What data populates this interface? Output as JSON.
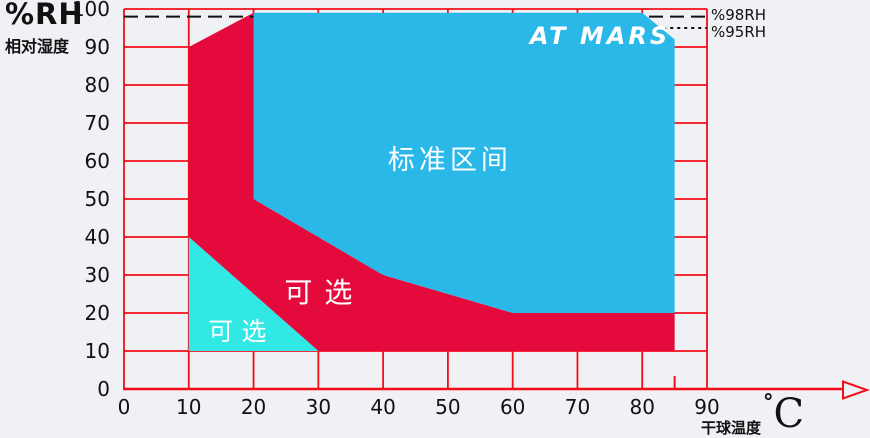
{
  "axes": {
    "y_unit": "%RH",
    "y_title": "相对湿度",
    "x_title": "干球温度",
    "x_unit_degree": "°",
    "x_unit_letter": "C"
  },
  "logo": {
    "text": "AT MARS"
  },
  "colors": {
    "background": "#eff1f5",
    "grid": "#f20d19",
    "reference_line": "#111111",
    "tick_text": "#111111",
    "region_label_text": "#ffffff"
  },
  "chart_data": {
    "type": "area",
    "title": "",
    "xlabel": "干球温度 (°C)",
    "ylabel": "相对湿度 (%RH)",
    "xlim": [
      0,
      90
    ],
    "ylim": [
      0,
      100
    ],
    "x_ticks": [
      0,
      10,
      20,
      30,
      40,
      50,
      60,
      70,
      80,
      90
    ],
    "x_minor_ticks": [
      85
    ],
    "y_ticks": [
      0,
      10,
      20,
      30,
      40,
      50,
      60,
      70,
      80,
      90,
      100
    ],
    "grid": true,
    "legend": "none",
    "reference_lines": [
      {
        "y": 98,
        "label": "%98RH",
        "style": "dashed",
        "x_start": 0,
        "x_end": 90
      },
      {
        "y": 95,
        "label": "%95RH",
        "style": "dotted",
        "x_start": 80,
        "x_end": 90
      }
    ],
    "regions": [
      {
        "name": "optional-red",
        "label": "可选",
        "color": "#e50a3c",
        "z": 1,
        "points": [
          [
            10,
            90
          ],
          [
            20,
            99
          ],
          [
            20,
            50
          ],
          [
            40,
            30
          ],
          [
            60,
            20
          ],
          [
            85,
            20
          ],
          [
            85,
            10
          ],
          [
            30,
            10
          ],
          [
            10,
            40
          ]
        ],
        "label_pos": [
          30,
          25.5
        ]
      },
      {
        "name": "optional-cyan",
        "label": "可选",
        "color": "#30e9e4",
        "z": 1,
        "points": [
          [
            10,
            40
          ],
          [
            30,
            10
          ],
          [
            10,
            10
          ]
        ],
        "label_pos": [
          17.5,
          15.2
        ]
      },
      {
        "name": "standard-range",
        "label": "标准区间",
        "color": "#29b8e8",
        "z": 2,
        "points": [
          [
            20,
            99
          ],
          [
            80,
            99
          ],
          [
            85,
            92
          ],
          [
            85,
            20
          ],
          [
            60,
            20
          ],
          [
            40,
            30
          ],
          [
            20,
            50
          ]
        ],
        "label_pos": [
          50,
          60.5
        ]
      }
    ]
  }
}
